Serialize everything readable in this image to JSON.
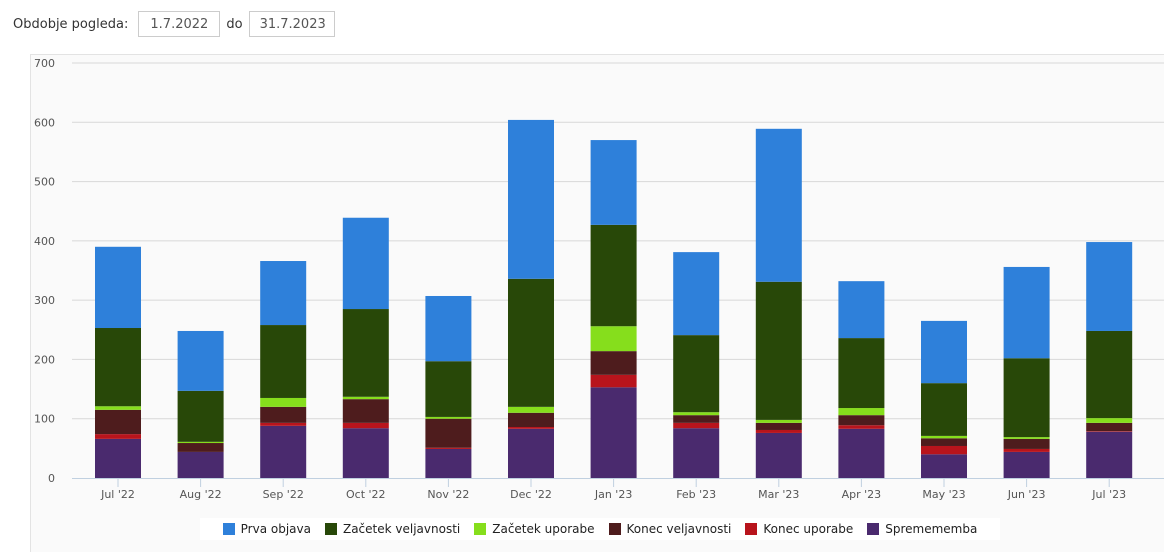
{
  "header": {
    "label": "Obdobje pogleda:",
    "from": "1.7.2022",
    "sep": "do",
    "to": "31.7.2023"
  },
  "chart_data": {
    "type": "bar",
    "stacked": true,
    "categories": [
      "Jul '22",
      "Aug '22",
      "Sep '22",
      "Oct '22",
      "Nov '22",
      "Dec '22",
      "Jan '23",
      "Feb '23",
      "Mar '23",
      "Apr '23",
      "May '23",
      "Jun '23",
      "Jul '23"
    ],
    "ylim": [
      0,
      700
    ],
    "yticks": [
      "0",
      "100",
      "200",
      "300",
      "400",
      "500",
      "600",
      "700"
    ],
    "legend_position": "bottom",
    "grid": true,
    "series": [
      {
        "name": "Spremememba",
        "color": "#4a2a6e",
        "values": [
          66,
          44,
          88,
          84,
          49,
          83,
          153,
          84,
          76,
          83,
          40,
          44,
          78
        ]
      },
      {
        "name": "Konec uporabe",
        "color": "#b8141c",
        "values": [
          8,
          0,
          5,
          9,
          2,
          3,
          21,
          9,
          5,
          6,
          14,
          5,
          1
        ]
      },
      {
        "name": "Konec veljavnosti",
        "color": "#4e1c1d",
        "values": [
          41,
          15,
          27,
          40,
          49,
          24,
          40,
          13,
          12,
          17,
          13,
          17,
          14
        ]
      },
      {
        "name": "Začetek uporabe",
        "color": "#86de1c",
        "values": [
          6,
          2,
          15,
          4,
          3,
          10,
          42,
          5,
          5,
          12,
          4,
          3,
          8
        ]
      },
      {
        "name": "Začetek veljavnosti",
        "color": "#284808",
        "values": [
          132,
          86,
          123,
          148,
          94,
          216,
          171,
          130,
          233,
          118,
          89,
          133,
          147
        ]
      },
      {
        "name": "Prva objava",
        "color": "#2e80da",
        "values": [
          137,
          101,
          108,
          154,
          110,
          268,
          143,
          140,
          258,
          96,
          105,
          154,
          150
        ]
      }
    ],
    "legend_order": [
      "Prva objava",
      "Začetek veljavnosti",
      "Začetek uporabe",
      "Konec veljavnosti",
      "Konec uporabe",
      "Spremememba"
    ]
  }
}
